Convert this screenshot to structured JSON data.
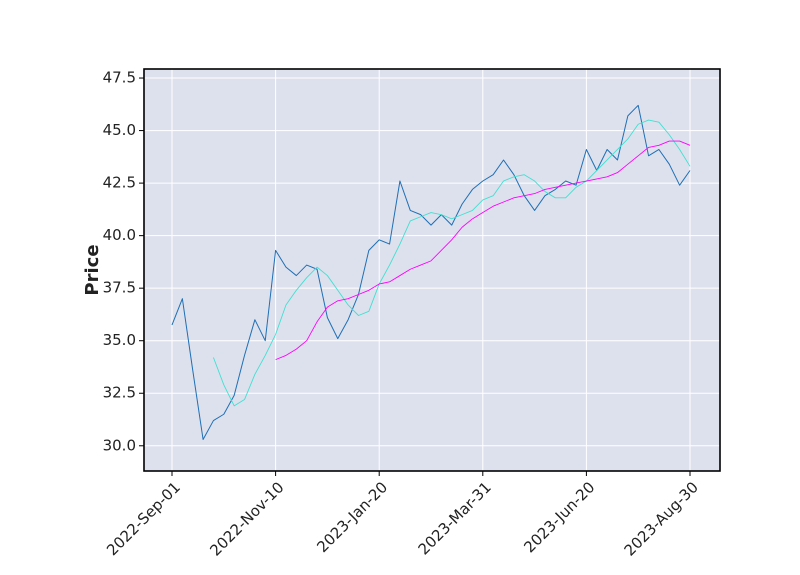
{
  "chart_data": {
    "type": "line",
    "ylabel": "Price",
    "categories": [
      "2022-Sep-01",
      null,
      null,
      null,
      null,
      null,
      null,
      null,
      null,
      null,
      "2022-Nov-10",
      null,
      null,
      null,
      null,
      null,
      null,
      null,
      null,
      null,
      "2023-Jan-20",
      null,
      null,
      null,
      null,
      null,
      null,
      null,
      null,
      null,
      "2023-Mar-31",
      null,
      null,
      null,
      null,
      null,
      null,
      null,
      null,
      null,
      "2023-Jun-20",
      null,
      null,
      null,
      null,
      null,
      null,
      null,
      null,
      null,
      "2023-Aug-30"
    ],
    "series": [
      {
        "color": "#1f6fb4",
        "values": [
          35.75,
          37.0,
          33.6,
          30.3,
          31.2,
          31.5,
          32.4,
          34.3,
          36.0,
          35.0,
          39.3,
          38.5,
          38.1,
          38.6,
          38.4,
          36.1,
          35.1,
          36.0,
          37.2,
          39.3,
          39.8,
          39.6,
          42.6,
          41.2,
          41.0,
          40.5,
          41.0,
          40.5,
          41.5,
          42.2,
          42.6,
          42.9,
          43.6,
          42.9,
          41.9,
          41.2,
          41.9,
          42.2,
          42.6,
          42.4,
          44.1,
          43.1,
          44.1,
          43.6,
          45.7,
          46.2,
          43.8,
          44.1,
          43.4,
          42.4,
          43.1
        ]
      },
      {
        "color": "#40e0d0",
        "values": [
          null,
          null,
          null,
          null,
          34.2,
          32.9,
          31.9,
          32.2,
          33.4,
          34.3,
          35.3,
          36.7,
          37.4,
          38.0,
          38.5,
          38.1,
          37.4,
          36.7,
          36.2,
          36.4,
          37.7,
          38.6,
          39.6,
          40.7,
          40.9,
          41.1,
          41.0,
          40.8,
          41.0,
          41.2,
          41.7,
          41.9,
          42.6,
          42.8,
          42.9,
          42.6,
          42.1,
          41.8,
          41.8,
          42.3,
          42.6,
          43.1,
          43.6,
          44.1,
          44.6,
          45.3,
          45.5,
          45.4,
          44.8,
          44.1,
          43.3
        ]
      },
      {
        "color": "#ff00ff",
        "values": [
          null,
          null,
          null,
          null,
          null,
          null,
          null,
          null,
          null,
          null,
          34.1,
          34.3,
          34.6,
          35.0,
          35.9,
          36.6,
          36.9,
          37.0,
          37.2,
          37.4,
          37.7,
          37.8,
          38.1,
          38.4,
          38.6,
          38.8,
          39.3,
          39.8,
          40.4,
          40.8,
          41.1,
          41.4,
          41.6,
          41.8,
          41.9,
          42.0,
          42.2,
          42.3,
          42.4,
          42.5,
          42.6,
          42.7,
          42.8,
          43.0,
          43.4,
          43.8,
          44.2,
          44.3,
          44.5,
          44.5,
          44.3
        ]
      }
    ],
    "ylim": [
      28.8,
      47.93
    ],
    "yticks": [
      {
        "value": 30,
        "label": "30.0"
      },
      32.5,
      {
        "value": 35,
        "label": "35.0"
      },
      37.5,
      {
        "value": 40,
        "label": "40.0"
      },
      42.5,
      {
        "value": 45,
        "label": "45.0"
      },
      47.5
    ],
    "grid": true,
    "background": "#dde1ee"
  }
}
